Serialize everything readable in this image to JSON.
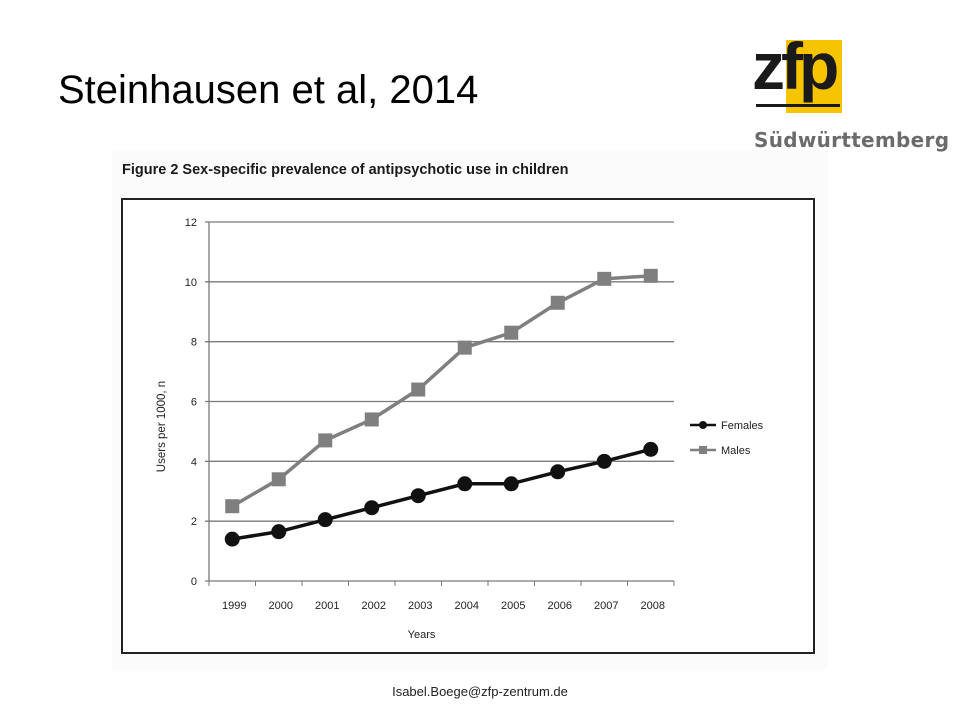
{
  "slide": {
    "title": "Steinhausen et al, 2014",
    "footer": "Isabel.Boege@zfp-zentrum.de"
  },
  "logo": {
    "text": "zfp",
    "subtitle": "Südwürttemberg",
    "box_color": "#f6c400"
  },
  "chart_data": {
    "type": "line",
    "title": "Figure 2  Sex-specific prevalence of antipsychotic use in children",
    "xlabel": "Years",
    "ylabel": "Users per 1000, n",
    "ylim": [
      0,
      12
    ],
    "yticks": [
      0,
      2,
      4,
      6,
      8,
      10,
      12
    ],
    "grid": true,
    "legend_position": "right",
    "categories": [
      "1999",
      "2000",
      "2001",
      "2002",
      "2003",
      "2004",
      "2005",
      "2006",
      "2007",
      "2008"
    ],
    "series": [
      {
        "name": "Females",
        "marker": "circle",
        "color": "#111111",
        "values": [
          1.4,
          1.65,
          2.05,
          2.45,
          2.85,
          3.25,
          3.25,
          3.65,
          4.0,
          4.4
        ]
      },
      {
        "name": "Males",
        "marker": "square",
        "color": "#7f7f7f",
        "values": [
          2.5,
          3.4,
          4.7,
          5.4,
          6.4,
          7.8,
          8.3,
          9.3,
          10.1,
          10.2
        ]
      }
    ]
  }
}
